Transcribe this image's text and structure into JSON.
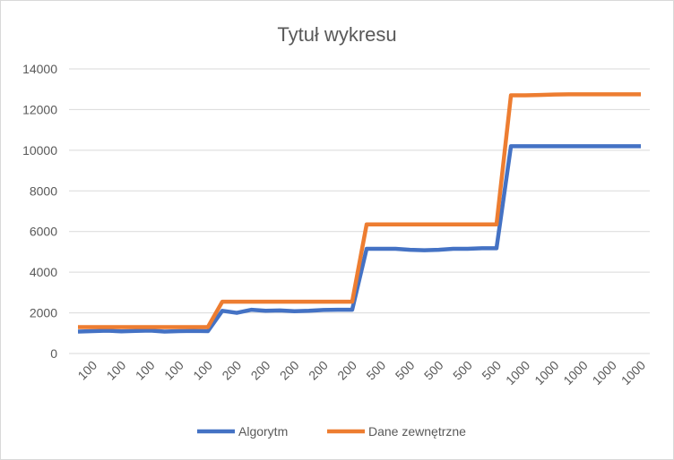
{
  "chart_data": {
    "type": "line",
    "title": "Tytuł wykresu",
    "categories": [
      null,
      100,
      null,
      100,
      null,
      100,
      null,
      100,
      null,
      100,
      null,
      200,
      null,
      200,
      null,
      200,
      null,
      200,
      null,
      200,
      null,
      500,
      null,
      500,
      null,
      500,
      null,
      500,
      null,
      500,
      null,
      1000,
      null,
      1000,
      null,
      1000,
      null,
      1000,
      null,
      1000
    ],
    "series": [
      {
        "name": "Algorytm",
        "color": "#4472c4",
        "values": [
          1080,
          1100,
          1120,
          1090,
          1110,
          1130,
          1080,
          1100,
          1110,
          1100,
          2100,
          2000,
          2150,
          2100,
          2120,
          2080,
          2100,
          2140,
          2150,
          2150,
          5150,
          5150,
          5150,
          5100,
          5080,
          5100,
          5150,
          5150,
          5180,
          5180,
          10200,
          10200,
          10200,
          10200,
          10200,
          10200,
          10200,
          10200,
          10200,
          10200
        ]
      },
      {
        "name": "Dane zewnętrzne",
        "color": "#ed7d31",
        "values": [
          1300,
          1300,
          1300,
          1300,
          1300,
          1300,
          1300,
          1300,
          1300,
          1300,
          2550,
          2550,
          2550,
          2550,
          2550,
          2550,
          2550,
          2550,
          2550,
          2550,
          6350,
          6350,
          6350,
          6350,
          6350,
          6350,
          6350,
          6350,
          6350,
          6350,
          12700,
          12700,
          12720,
          12740,
          12750,
          12750,
          12750,
          12750,
          12750,
          12750
        ]
      }
    ],
    "ylim": [
      0,
      14000
    ],
    "yticks": [
      0,
      2000,
      4000,
      6000,
      8000,
      10000,
      12000,
      14000
    ],
    "grid": true,
    "legend": "bottom"
  }
}
